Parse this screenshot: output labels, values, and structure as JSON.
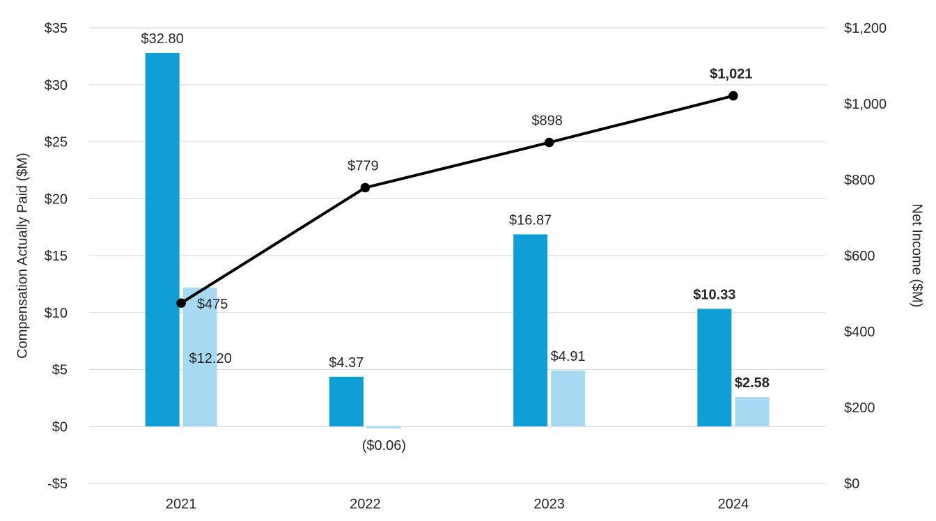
{
  "chart_data": {
    "type": "bar",
    "subtype": "combo-bar-line-dual-axis",
    "categories": [
      "2021",
      "2022",
      "2023",
      "2024"
    ],
    "bar_series": [
      {
        "name": "compensation-actually-paid-peo",
        "color": "#0f9ed5",
        "values": [
          32.8,
          4.37,
          16.87,
          10.33
        ],
        "labels": [
          "$32.80",
          "$4.37",
          "$16.87",
          "$10.33"
        ],
        "bold": [
          false,
          false,
          false,
          true
        ]
      },
      {
        "name": "compensation-actually-paid-neo",
        "color": "#a8d9f2",
        "values": [
          12.2,
          -0.06,
          4.91,
          2.58
        ],
        "labels": [
          "$12.20",
          "($0.06)",
          "$4.91",
          "$2.58"
        ],
        "bold": [
          false,
          false,
          false,
          true
        ]
      }
    ],
    "line_series": {
      "name": "net-income",
      "color": "#000000",
      "axis": "right",
      "values": [
        475,
        779,
        898,
        1021
      ],
      "labels": [
        "$475",
        "$779",
        "$898",
        "$1,021"
      ],
      "bold": [
        false,
        false,
        false,
        true
      ]
    },
    "left_axis": {
      "title": "Compensation Actually Paid ($M)",
      "min": -5,
      "max": 35,
      "ticks": [
        {
          "v": 35,
          "label": "$35"
        },
        {
          "v": 30,
          "label": "$30"
        },
        {
          "v": 25,
          "label": "$25"
        },
        {
          "v": 20,
          "label": "$20"
        },
        {
          "v": 15,
          "label": "$15"
        },
        {
          "v": 10,
          "label": "$10"
        },
        {
          "v": 5,
          "label": "$5"
        },
        {
          "v": 0,
          "label": "$0"
        },
        {
          "v": -5,
          "label": "-$5"
        }
      ]
    },
    "right_axis": {
      "title": "Net Income ($M)",
      "min": 0,
      "max": 1200,
      "ticks": [
        {
          "v": 1200,
          "label": "$1,200"
        },
        {
          "v": 1000,
          "label": "$1,000"
        },
        {
          "v": 800,
          "label": "$800"
        },
        {
          "v": 600,
          "label": "$600"
        },
        {
          "v": 400,
          "label": "$400"
        },
        {
          "v": 200,
          "label": "$200"
        },
        {
          "v": 0,
          "label": "$0"
        }
      ]
    },
    "grid": true,
    "legend": "none"
  }
}
